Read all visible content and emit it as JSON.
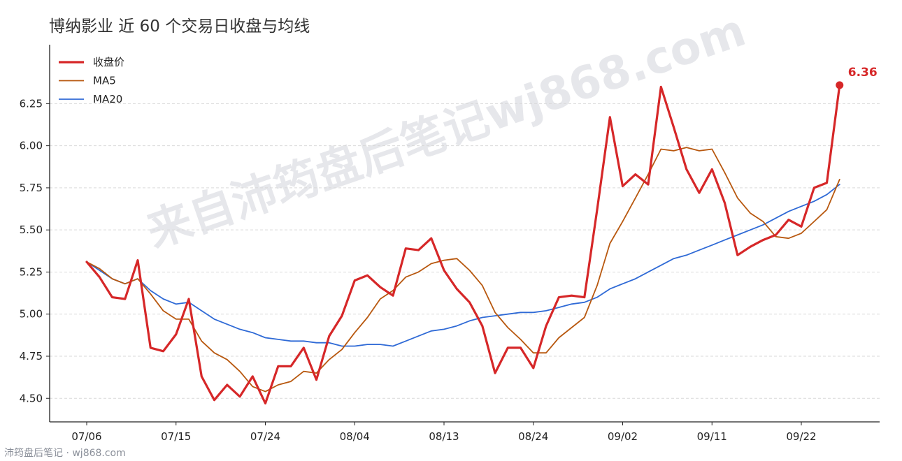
{
  "title": "博纳影业 近 60 个交易日收盘与均线",
  "watermark": "来自沛筠盘后笔记wj868.com",
  "footer": "沛筠盘后笔记 · wj868.com",
  "colors": {
    "close": "#d62728",
    "ma5": "#b8580f",
    "ma20": "#2f6ad6",
    "grid": "#d9d9d9",
    "axis": "#222222",
    "watermark": "#c9cbd3"
  },
  "chart_data": {
    "type": "line",
    "title": "博纳影业 近 60 个交易日收盘与均线",
    "xlabel": "",
    "ylabel": "",
    "ylim": [
      4.36,
      6.6
    ],
    "yticks": [
      "4.50",
      "4.75",
      "5.00",
      "5.25",
      "5.50",
      "5.75",
      "6.00",
      "6.25"
    ],
    "xticks": [
      "07/06",
      "07/15",
      "07/24",
      "08/04",
      "08/13",
      "08/24",
      "09/02",
      "09/11",
      "09/22"
    ],
    "xtick_index": [
      0,
      7,
      14,
      21,
      28,
      35,
      42,
      49,
      56
    ],
    "grid": "horizontal dashed",
    "legend_position": "top-left",
    "last_label": "6.36",
    "series": [
      {
        "name": "收盘价",
        "values": [
          5.31,
          5.22,
          5.1,
          5.09,
          5.32,
          4.8,
          4.78,
          4.88,
          5.09,
          4.63,
          4.49,
          4.58,
          4.51,
          4.63,
          4.47,
          4.69,
          4.69,
          4.8,
          4.61,
          4.87,
          4.99,
          5.2,
          5.23,
          5.16,
          5.11,
          5.39,
          5.38,
          5.45,
          5.26,
          5.15,
          5.07,
          4.93,
          4.65,
          4.8,
          4.8,
          4.68,
          4.93,
          5.1,
          5.11,
          5.1,
          5.62,
          6.17,
          5.76,
          5.83,
          5.77,
          6.35,
          6.11,
          5.86,
          5.72,
          5.86,
          5.66,
          5.35,
          5.4,
          5.44,
          5.47,
          5.56,
          5.52,
          5.75,
          5.78,
          6.36
        ]
      },
      {
        "name": "MA5",
        "values": [
          5.31,
          5.27,
          5.21,
          5.18,
          5.21,
          5.12,
          5.02,
          4.97,
          4.97,
          4.84,
          4.77,
          4.73,
          4.66,
          4.57,
          4.54,
          4.58,
          4.6,
          4.66,
          4.65,
          4.73,
          4.79,
          4.89,
          4.98,
          5.09,
          5.14,
          5.22,
          5.25,
          5.3,
          5.32,
          5.33,
          5.26,
          5.17,
          5.01,
          4.92,
          4.85,
          4.77,
          4.77,
          4.86,
          4.92,
          4.98,
          5.17,
          5.42,
          5.55,
          5.69,
          5.83,
          5.98,
          5.97,
          5.99,
          5.97,
          5.98,
          5.84,
          5.69,
          5.6,
          5.55,
          5.46,
          5.45,
          5.48,
          5.55,
          5.62,
          5.8
        ]
      },
      {
        "name": "MA20",
        "values": [
          5.31,
          5.26,
          5.21,
          5.18,
          5.21,
          5.14,
          5.09,
          5.06,
          5.07,
          5.02,
          4.97,
          4.94,
          4.91,
          4.89,
          4.86,
          4.85,
          4.84,
          4.84,
          4.83,
          4.83,
          4.81,
          4.81,
          4.82,
          4.82,
          4.81,
          4.84,
          4.87,
          4.9,
          4.91,
          4.93,
          4.96,
          4.98,
          4.99,
          5.0,
          5.01,
          5.01,
          5.02,
          5.04,
          5.06,
          5.07,
          5.1,
          5.15,
          5.18,
          5.21,
          5.25,
          5.29,
          5.33,
          5.35,
          5.38,
          5.41,
          5.44,
          5.47,
          5.5,
          5.53,
          5.57,
          5.61,
          5.64,
          5.67,
          5.71,
          5.77
        ]
      }
    ]
  }
}
